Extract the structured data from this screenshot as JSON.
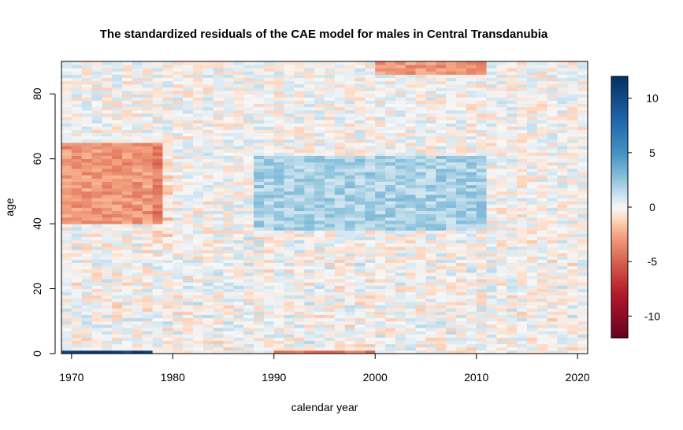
{
  "chart_data": {
    "type": "heatmap",
    "title": "The standardized residuals of the CAE model for males in Central Transdanubia",
    "xlabel": "calendar year",
    "ylabel": "age",
    "x_range": [
      1969,
      2021
    ],
    "y_range": [
      0,
      90
    ],
    "x_ticks": [
      1970,
      1980,
      1990,
      2000,
      2010,
      2020
    ],
    "y_ticks": [
      0,
      20,
      40,
      60,
      80
    ],
    "colorbar": {
      "range": [
        -12,
        12
      ],
      "ticks": [
        10,
        5,
        0,
        -5,
        -10
      ],
      "color_low": "#67001F",
      "color_mid": "#F7F7F7",
      "color_high": "#053061"
    },
    "value_pattern": {
      "note_regions": [
        {
          "years": [
            1969,
            1978
          ],
          "ages": [
            40,
            64
          ],
          "approx_value": -3
        },
        {
          "years": [
            1988,
            2010
          ],
          "ages": [
            38,
            60
          ],
          "approx_value": 2
        },
        {
          "years": [
            1969,
            1977
          ],
          "ages": [
            0,
            0
          ],
          "approx_value": 11
        },
        {
          "years": [
            1990,
            1999
          ],
          "ages": [
            0,
            0
          ],
          "approx_value": -4
        },
        {
          "years": [
            2000,
            2010
          ],
          "ages": [
            86,
            90
          ],
          "approx_value": -3
        }
      ]
    }
  }
}
